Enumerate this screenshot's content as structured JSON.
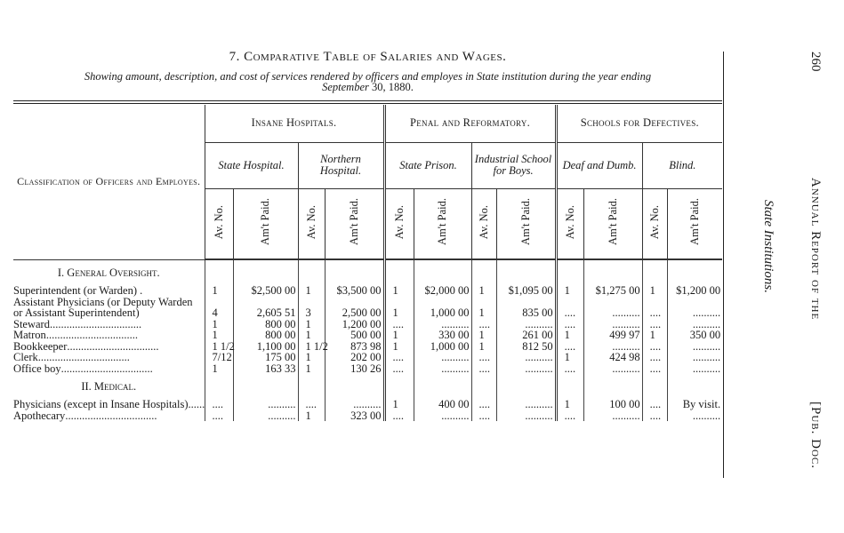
{
  "page": {
    "number": "260",
    "running_head": "Annual Report of the",
    "doc": "[Pub. Doc.",
    "section": "State Institutions."
  },
  "title": "7. Comparative Table of Salaries and Wages.",
  "subtitle": {
    "line1": "Showing amount, description, and cost of services rendered by officers and employes in State institution during the year ending",
    "line2_month": "September",
    "line2_rest": " 30, 1880."
  },
  "headers": {
    "classification": "Classification of Officers and Employes.",
    "groups": [
      "Insane Hospitals.",
      "Penal and Reformatory.",
      "Schools for Defectives."
    ],
    "institutions": [
      "State Hospital.",
      "Northern Hospital.",
      "State Prison.",
      "Industrial School for Boys.",
      "Deaf and Dumb.",
      "Blind."
    ],
    "av_no": "Av. No.",
    "amt_paid": "Am't Paid."
  },
  "rows": [
    {
      "type": "section",
      "label": "I. General Oversight."
    },
    {
      "label": "Superintendent (or Warden) .",
      "values": [
        "1",
        "$2,500 00",
        "1",
        "$3,500 00",
        "1",
        "$2,000 00",
        "1",
        "$1,095 00",
        "1",
        "$1,275 00",
        "1",
        "$1,200 00"
      ]
    },
    {
      "label": "Assistant Physicians (or Deputy Warden or Assistant Superintendent)",
      "values": [
        "4",
        "2,605 51",
        "3",
        "2,500 00",
        "1",
        "1,000 00",
        "1",
        "835 00",
        "....",
        "..........",
        "....",
        ".........."
      ]
    },
    {
      "label": "Steward",
      "values": [
        "1",
        "800 00",
        "1",
        "1,200 00",
        "....",
        "..........",
        "....",
        "..........",
        "....",
        "..........",
        "....",
        ".........."
      ]
    },
    {
      "label": "Matron",
      "values": [
        "1",
        "800 00",
        "1",
        "500 00",
        "1",
        "330 00",
        "1",
        "261 00",
        "1",
        "499 97",
        "1",
        "350 00"
      ]
    },
    {
      "label": "Bookkeeper",
      "values": [
        "1 1/2",
        "1,100 00",
        "1 1/2",
        "873 98",
        "1",
        "1,000 00",
        "1",
        "812 50",
        "....",
        "..........",
        "....",
        ".........."
      ]
    },
    {
      "label": "Clerk",
      "values": [
        "7/12",
        "175 00",
        "1",
        "202 00",
        "....",
        "..........",
        "....",
        "..........",
        "1",
        "424 98",
        "....",
        ".........."
      ]
    },
    {
      "label": "Office boy",
      "values": [
        "1",
        "163 33",
        "1",
        "130 26",
        "....",
        "..........",
        "....",
        "..........",
        "....",
        "..........",
        "....",
        ".........."
      ]
    },
    {
      "type": "section",
      "label": "II. Medical."
    },
    {
      "label": "Physicians (except in Insane Hospitals)",
      "values": [
        "....",
        "..........",
        "....",
        "..........",
        "1",
        "400 00",
        "....",
        "..........",
        "1",
        "100 00",
        "....",
        "By visit."
      ]
    },
    {
      "label": "Apothecary",
      "values": [
        "....",
        "..........",
        "1",
        "323 00",
        "....",
        "..........",
        "....",
        "..........",
        "....",
        "..........",
        "....",
        ".........."
      ]
    }
  ]
}
